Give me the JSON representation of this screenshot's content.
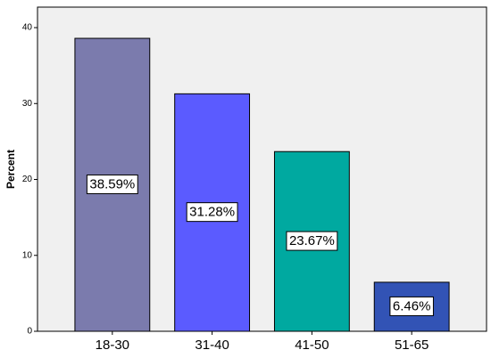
{
  "chart_data": {
    "type": "bar",
    "y_label": "Percent",
    "categories": [
      "18-30",
      "31-40",
      "41-50",
      "51-65"
    ],
    "values": [
      38.59,
      31.28,
      23.67,
      6.46
    ],
    "value_labels": [
      "38.59%",
      "31.28%",
      "23.67%",
      "6.46%"
    ],
    "colors": [
      "#7b7bad",
      "#5b5bff",
      "#00a9a0",
      "#3253b5"
    ],
    "ylim": [
      0,
      42.7
    ],
    "yticks": [
      0,
      10,
      20,
      30,
      40
    ],
    "grid": false
  }
}
